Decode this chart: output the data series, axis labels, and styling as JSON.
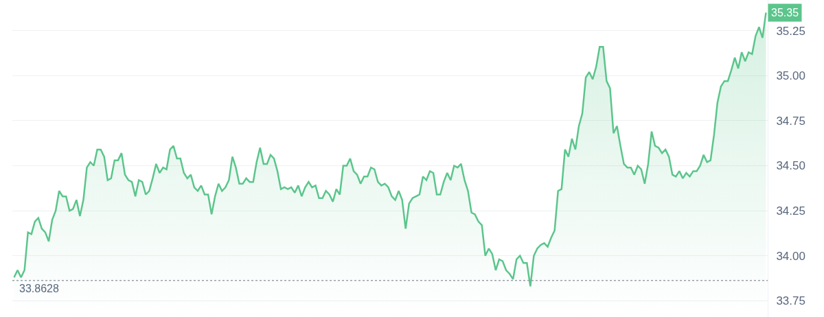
{
  "chart_data": {
    "type": "area",
    "categories": [
      null,
      null,
      null,
      null,
      null,
      null,
      null,
      null,
      null,
      null,
      null,
      null,
      null,
      null,
      null,
      null,
      null,
      null,
      null,
      null,
      null,
      null,
      null,
      null,
      null,
      null,
      null,
      null,
      null,
      null,
      null,
      null,
      null,
      null,
      null,
      null,
      null,
      null,
      null,
      null,
      null,
      null,
      null,
      null,
      null,
      null,
      null,
      null,
      null,
      null,
      null,
      null,
      null,
      null,
      null,
      null,
      null,
      null,
      null,
      null,
      null,
      null,
      null,
      null,
      null,
      null,
      null,
      null,
      null,
      null,
      null,
      null,
      null,
      null,
      null,
      null,
      null,
      null,
      null,
      null,
      null,
      null,
      null,
      null,
      null,
      null,
      null,
      null,
      null,
      null,
      null,
      null,
      null,
      null,
      null,
      null,
      null,
      null,
      null,
      null,
      null,
      null,
      null,
      null,
      null,
      null,
      null,
      null,
      null,
      null,
      null,
      null,
      null,
      null,
      null,
      null,
      null,
      null,
      null,
      null,
      null,
      null,
      null,
      null,
      null,
      null,
      null,
      null,
      null,
      null,
      null,
      null,
      null,
      null,
      null,
      null,
      null,
      null,
      null,
      null,
      null,
      null,
      null,
      null,
      null,
      null,
      null,
      null,
      null,
      null,
      null,
      null,
      null,
      null,
      null,
      null,
      null,
      null,
      null,
      null,
      null,
      null,
      null,
      null,
      null,
      null,
      null,
      null,
      null,
      null,
      null,
      null,
      null,
      null,
      null,
      null,
      null,
      null,
      null,
      null,
      null,
      null,
      null,
      null,
      null,
      null,
      null,
      null,
      null,
      null,
      null,
      null,
      null,
      null,
      null,
      null,
      null,
      null,
      null,
      null,
      null,
      null,
      null,
      null,
      null,
      null,
      null,
      null,
      null,
      null,
      null,
      null,
      null,
      null,
      null,
      null,
      null,
      null
    ],
    "ylim": [
      33.66,
      35.42
    ],
    "yticks": [
      33.75,
      {
        "value": 34.0,
        "label": "34.00"
      },
      34.25,
      {
        "value": 34.5,
        "label": "34.50"
      },
      34.75,
      {
        "value": 35.0,
        "label": "35.00"
      },
      35.25
    ],
    "grid": "y",
    "marker": "none",
    "line_style": "solid",
    "series": [
      {
        "color": "#5bc58c",
        "values": [
          33.88,
          33.92,
          33.88,
          33.92,
          34.13,
          34.12,
          34.19,
          34.21,
          34.15,
          34.13,
          34.08,
          34.2,
          34.25,
          34.36,
          34.33,
          34.33,
          34.25,
          34.26,
          34.31,
          34.22,
          34.31,
          34.49,
          34.52,
          34.5,
          34.59,
          34.59,
          34.55,
          34.42,
          34.43,
          34.53,
          34.53,
          34.57,
          34.45,
          34.42,
          34.41,
          34.33,
          34.42,
          34.41,
          34.34,
          34.36,
          34.43,
          34.51,
          34.46,
          34.49,
          34.48,
          34.59,
          34.61,
          34.54,
          34.54,
          34.46,
          34.43,
          34.45,
          34.38,
          34.36,
          34.39,
          34.34,
          34.34,
          34.23,
          34.33,
          34.4,
          34.36,
          34.38,
          34.42,
          34.55,
          34.49,
          34.4,
          34.4,
          34.43,
          34.41,
          34.41,
          34.52,
          34.6,
          34.51,
          34.51,
          34.56,
          34.54,
          34.47,
          34.37,
          34.38,
          34.37,
          34.38,
          34.35,
          34.39,
          34.33,
          34.38,
          34.41,
          34.38,
          34.39,
          34.32,
          34.32,
          34.36,
          34.34,
          34.3,
          34.37,
          34.34,
          34.5,
          34.5,
          34.54,
          34.47,
          34.45,
          34.4,
          34.44,
          34.44,
          34.49,
          34.48,
          34.41,
          34.39,
          34.4,
          34.38,
          34.33,
          34.31,
          34.36,
          34.31,
          34.15,
          34.29,
          34.32,
          34.33,
          34.34,
          34.44,
          34.42,
          34.47,
          34.46,
          34.34,
          34.34,
          34.41,
          34.46,
          34.42,
          34.5,
          34.49,
          34.51,
          34.42,
          34.36,
          34.24,
          34.23,
          34.19,
          34.17,
          34.0,
          34.04,
          34.01,
          33.92,
          33.98,
          33.97,
          33.92,
          33.9,
          33.87,
          33.98,
          34.0,
          33.96,
          33.96,
          33.83,
          34.0,
          34.04,
          34.06,
          34.07,
          34.05,
          34.1,
          34.14,
          34.36,
          34.37,
          34.59,
          34.55,
          34.65,
          34.59,
          34.72,
          34.79,
          34.99,
          35.02,
          34.98,
          35.05,
          35.16,
          35.16,
          34.97,
          34.93,
          34.68,
          34.72,
          34.61,
          34.51,
          34.49,
          34.49,
          34.45,
          34.5,
          34.48,
          34.4,
          34.51,
          34.69,
          34.61,
          34.6,
          34.57,
          34.59,
          34.55,
          34.45,
          34.44,
          34.47,
          34.43,
          34.46,
          34.44,
          34.47,
          34.47,
          34.5,
          34.56,
          34.52,
          34.53,
          34.67,
          34.85,
          34.94,
          34.97,
          34.97,
          35.03,
          35.1,
          35.04,
          35.13,
          35.08,
          35.13,
          35.12,
          35.22,
          35.27,
          35.21,
          35.35
        ]
      }
    ],
    "ref_lines": [
      {
        "axis": "y",
        "value": 33.8628,
        "label": "33.8628",
        "color": "#9aa0aa",
        "line_style": "dotted"
      }
    ],
    "annotations": [
      "35.35"
    ]
  }
}
